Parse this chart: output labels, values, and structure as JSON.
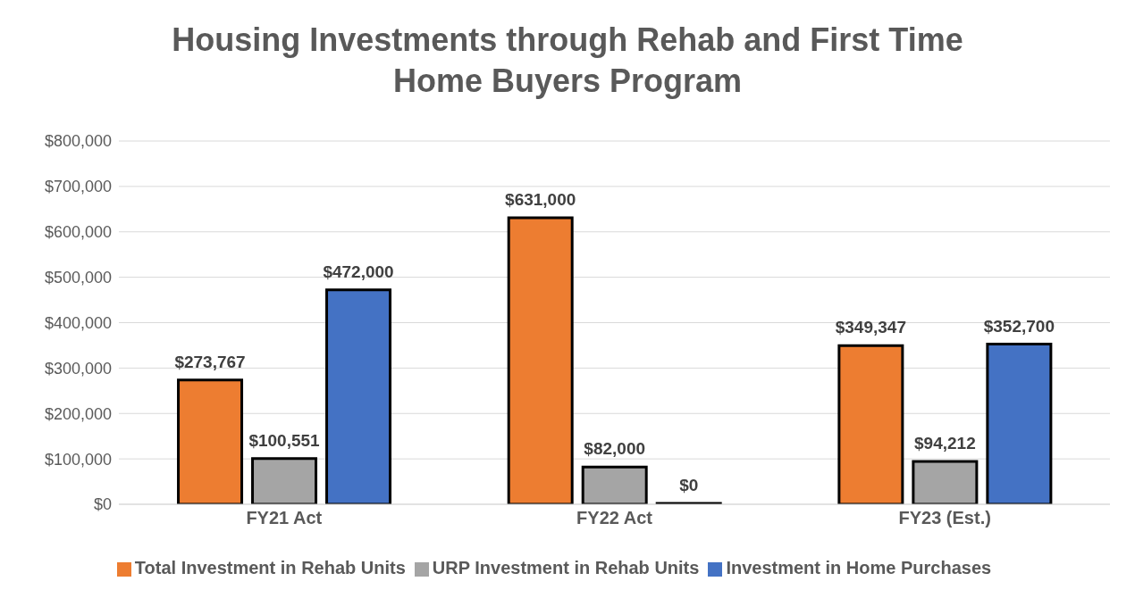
{
  "chart_data": {
    "type": "bar",
    "title": "Housing Investments through Rehab and First Time Home Buyers Program",
    "categories": [
      "FY21 Act",
      "FY22 Act",
      "FY23 (Est.)"
    ],
    "series": [
      {
        "name": "Total Investment in Rehab Units",
        "color": "#ed7d31",
        "values": [
          273767,
          631000,
          349347
        ],
        "value_labels": [
          "$273,767",
          "$631,000",
          "$349,347"
        ]
      },
      {
        "name": "URP Investment in Rehab Units",
        "color": "#a5a5a5",
        "values": [
          100551,
          82000,
          94212
        ],
        "value_labels": [
          "$100,551",
          "$82,000",
          "$94,212"
        ]
      },
      {
        "name": "Investment in Home Purchases",
        "color": "#4472c4",
        "values": [
          472000,
          0,
          352700
        ],
        "value_labels": [
          "$472,000",
          "$0",
          "$352,700"
        ]
      }
    ],
    "ylim": [
      0,
      800000
    ],
    "yticks": [
      {
        "value": 0,
        "label": "$0"
      },
      {
        "value": 100000,
        "label": "$100,000"
      },
      {
        "value": 200000,
        "label": "$200,000"
      },
      {
        "value": 300000,
        "label": "$300,000"
      },
      {
        "value": 400000,
        "label": "$400,000"
      },
      {
        "value": 500000,
        "label": "$500,000"
      },
      {
        "value": 600000,
        "label": "$600,000"
      },
      {
        "value": 700000,
        "label": "$700,000"
      },
      {
        "value": 800000,
        "label": "$800,000"
      }
    ],
    "grid": "y",
    "legend": "bottom"
  }
}
